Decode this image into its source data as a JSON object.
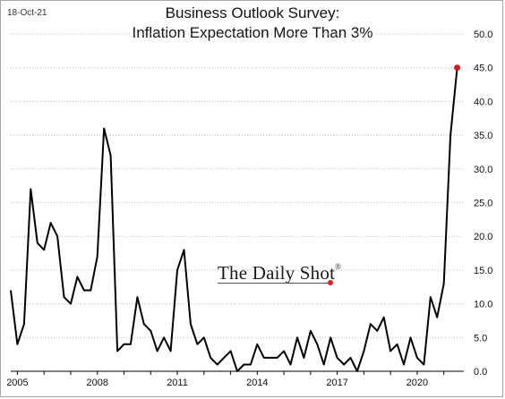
{
  "date_label": "18-Oct-21",
  "title_line1": "Business Outlook Survey:",
  "title_line2": "Inflation Expectation More Than 3%",
  "watermark": "The Daily Shot",
  "watermark_reg": "®",
  "colors": {
    "line": "#000000",
    "last_point": "#e0161e",
    "grid": "#bdbdbd"
  },
  "chart_data": {
    "type": "line",
    "title": "Business Outlook Survey: Inflation Expectation More Than 3%",
    "x_tick_labels": [
      "2005",
      "2008",
      "2011",
      "2014",
      "2017",
      "2020"
    ],
    "y_tick_labels": [
      "0.0",
      "5.0",
      "10.0",
      "15.0",
      "20.0",
      "25.0",
      "30.0",
      "35.0",
      "40.0",
      "45.0",
      "50.0"
    ],
    "ylim": [
      0,
      50
    ],
    "xlim": [
      2004.75,
      2021.75
    ],
    "grid": "horizontal dotted",
    "series": [
      {
        "frequency": "quarterly",
        "start": "2004Q4",
        "values": [
          12,
          4,
          7,
          27,
          19,
          18,
          22,
          20,
          11,
          10,
          14,
          12,
          12,
          17,
          36,
          32,
          3,
          4,
          4,
          11,
          7,
          6,
          3,
          5,
          3,
          15,
          18,
          7,
          4,
          5,
          2,
          1,
          2,
          3,
          0,
          1,
          1,
          4,
          2,
          2,
          2,
          3,
          1,
          5,
          2,
          6,
          4,
          1,
          5,
          2,
          1,
          2,
          0,
          3,
          7,
          6,
          8,
          3,
          4,
          1,
          5,
          2,
          1,
          11,
          8,
          13,
          35,
          45
        ]
      }
    ]
  }
}
